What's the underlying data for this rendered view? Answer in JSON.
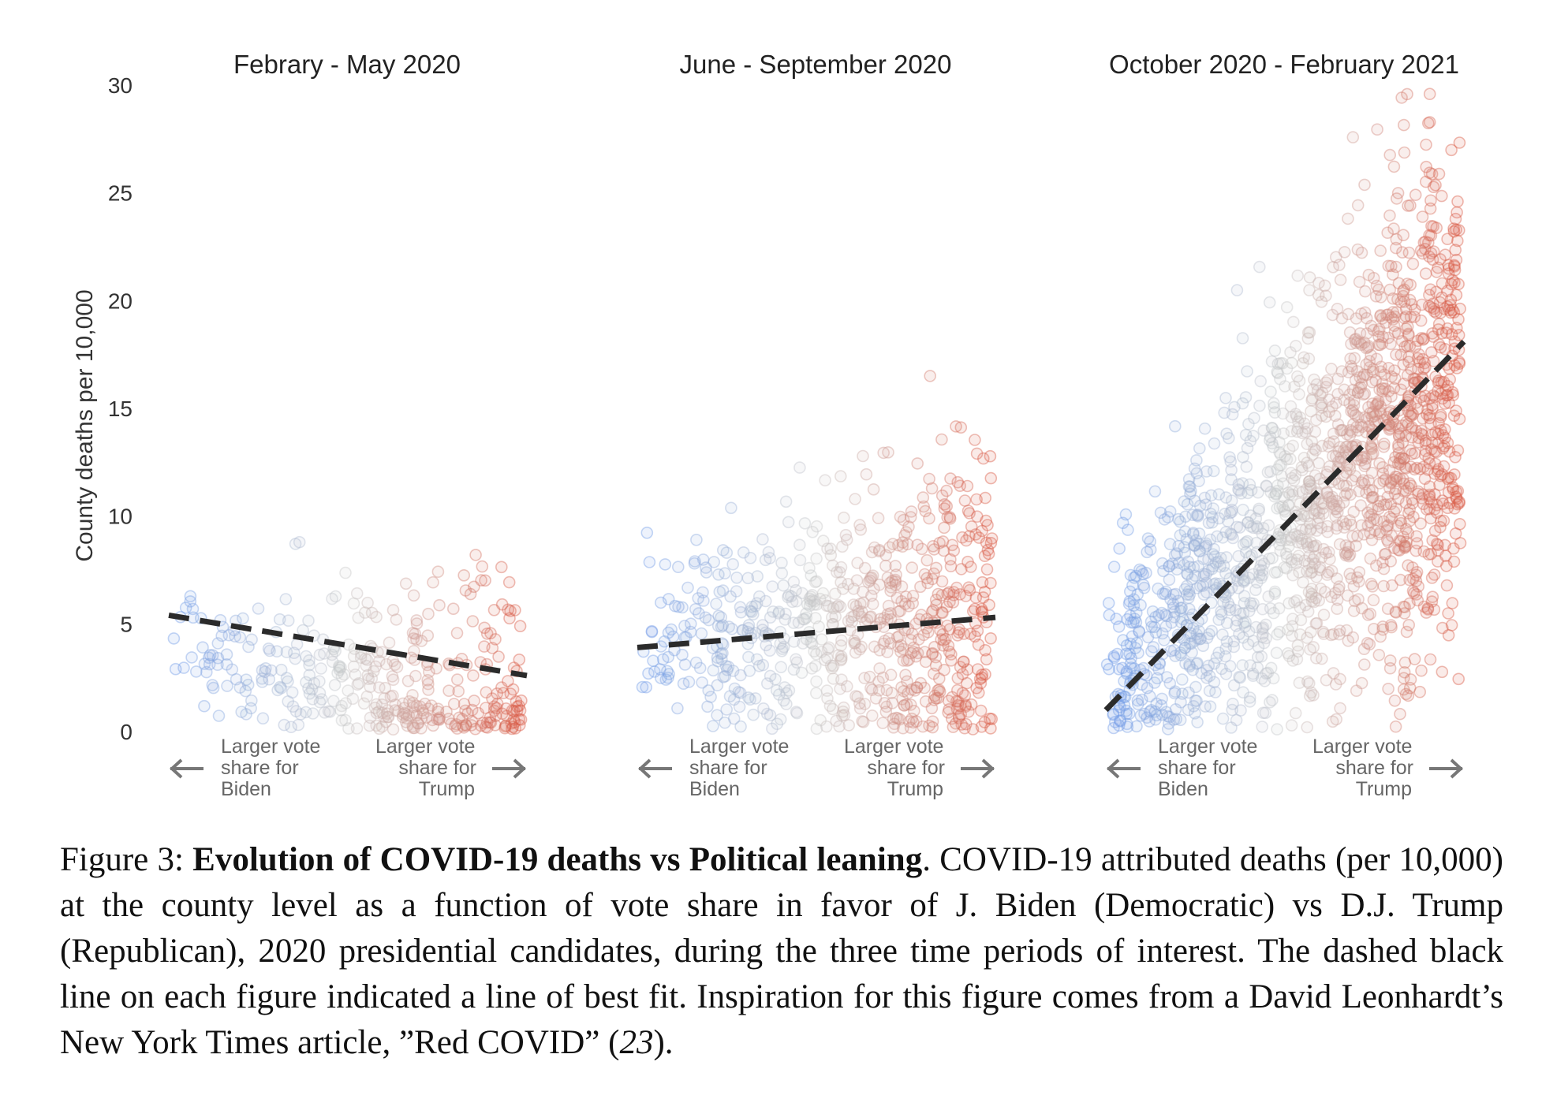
{
  "chart_data": [
    {
      "type": "scatter",
      "title": "Febrary - May 2020",
      "ylabel": "County deaths per 10,000",
      "ylim": [
        0,
        30
      ],
      "yticks": [
        "0",
        "5",
        "10",
        "15",
        "20",
        "25",
        "30"
      ],
      "x_annotations": {
        "left": [
          "Larger vote",
          "share for",
          "Biden"
        ],
        "right": [
          "Larger vote",
          "share for",
          "Trump"
        ]
      },
      "fit_line": {
        "x": [
          0,
          1
        ],
        "y": [
          5.4,
          2.6
        ],
        "style": "dashed",
        "color": "#2b2b2b"
      },
      "points": {
        "n": 380,
        "x_range": [
          0,
          1
        ],
        "base_y": 3.8,
        "slope": -2.8,
        "spread": 2.6,
        "max_y": 16.8,
        "extra_spread": 0.8
      }
    },
    {
      "type": "scatter",
      "title": "June - September 2020",
      "ylim": [
        0,
        30
      ],
      "x_annotations": {
        "left": [
          "Larger vote",
          "share for",
          "Biden"
        ],
        "right": [
          "Larger vote",
          "share for",
          "Trump"
        ]
      },
      "fit_line": {
        "x": [
          0,
          1
        ],
        "y": [
          3.9,
          5.3
        ],
        "style": "dashed",
        "color": "#2b2b2b"
      },
      "points": {
        "n": 700,
        "x_range": [
          0,
          1
        ],
        "base_y": 3.6,
        "slope": 1.6,
        "spread": 3.2,
        "max_y": 18.4,
        "extra_spread": 1.3
      }
    },
    {
      "type": "scatter",
      "title": "October 2020 - February 2021",
      "ylim": [
        0,
        30
      ],
      "x_annotations": {
        "left": [
          "Larger vote",
          "share for",
          "Biden"
        ],
        "right": [
          "Larger vote",
          "share for",
          "Trump"
        ]
      },
      "fit_line": {
        "x": [
          0,
          1
        ],
        "y": [
          1.0,
          18.1
        ],
        "style": "dashed",
        "color": "#2b2b2b"
      },
      "points": {
        "n": 1700,
        "x_range": [
          0,
          1
        ],
        "base_y": 2.5,
        "slope": 14.0,
        "spread": 4.8,
        "max_y": 30,
        "extra_spread": 2.2
      }
    }
  ],
  "colors": {
    "biden": "#6f9be8",
    "neutral": "#c9c9c9",
    "trump": "#d9553f",
    "fit_line": "#2b2b2b",
    "arrow": "#777777"
  },
  "caption": {
    "prefix": "Figure 3: ",
    "bold": "Evolution of COVID-19 deaths vs Political leaning",
    "body": ".  COVID-19 attributed deaths (per 10,000) at the county level as a function of vote share in favor of J. Biden (Democratic) vs D.J. Trump (Republican), 2020 presidential candidates, during the three time periods of interest. The dashed black line on each figure indicated a line of best fit. Inspiration for this figure comes from a David Leonhardt’s New York Times article, ”Red COVID” (",
    "ref": "23",
    "suffix": ")."
  }
}
